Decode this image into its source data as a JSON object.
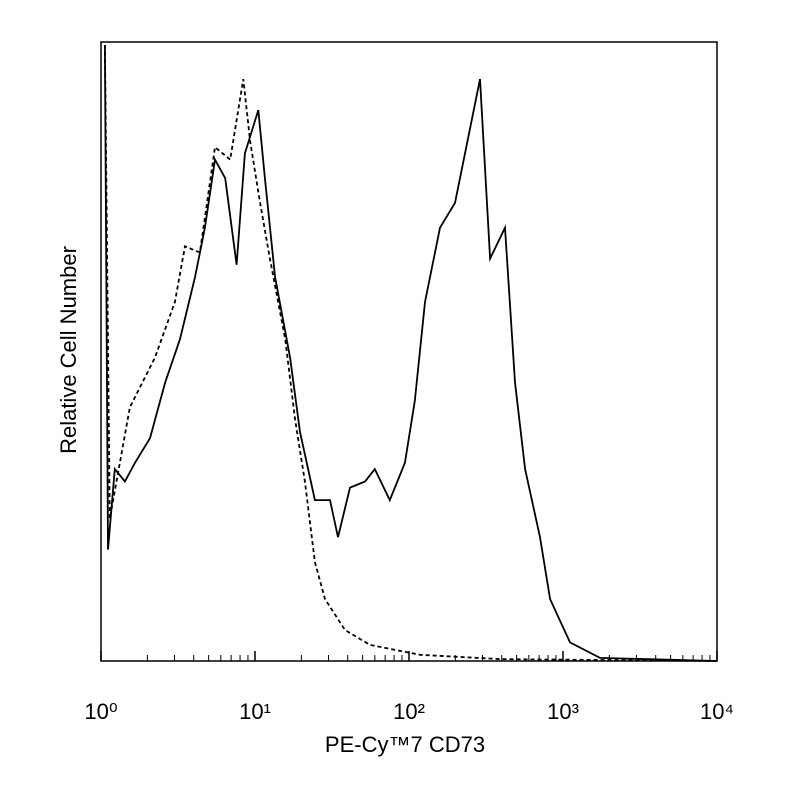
{
  "chart_data": {
    "type": "line",
    "xlabel": "PE-Cy™7 CD73",
    "ylabel": "Relative Cell Number",
    "xscale": "log",
    "xlim": [
      1,
      10000
    ],
    "xticks": [
      {
        "value": 1,
        "label": "10⁰"
      },
      {
        "value": 10,
        "label": "10¹"
      },
      {
        "value": 100,
        "label": "10²"
      },
      {
        "value": 1000,
        "label": "10³"
      },
      {
        "value": 10000,
        "label": "10⁴"
      }
    ],
    "ylim": [
      0,
      100
    ],
    "series": [
      {
        "color": "#000000",
        "style": "solid",
        "x": [
          1.06,
          1.11,
          1.23,
          1.43,
          1.66,
          2.08,
          2.61,
          3.26,
          4.08,
          4.73,
          5.5,
          6.4,
          7.6,
          8.6,
          10.5,
          11.6,
          13.5,
          16.9,
          19.6,
          24.5,
          30.7,
          34.6,
          41.4,
          51.8,
          60,
          75,
          94,
          109,
          127,
          159,
          199,
          249,
          289,
          336,
          420,
          488,
          567,
          709,
          824,
          1110,
          1740,
          10000
        ],
        "values": [
          99.5,
          18,
          31,
          29,
          32,
          36,
          45,
          52,
          62,
          70,
          81,
          78,
          64,
          82,
          89,
          78,
          62,
          49,
          37,
          26,
          26,
          20,
          28,
          29,
          31,
          26,
          32,
          42,
          58,
          70,
          74,
          86,
          94,
          65,
          70,
          45,
          31,
          20,
          10,
          3,
          0.5,
          0
        ]
      },
      {
        "color": "#000000",
        "style": "dashed",
        "x": [
          1.06,
          1.14,
          1.54,
          2.24,
          3.02,
          3.51,
          4.39,
          5.5,
          6.9,
          8.4,
          9.3,
          10.8,
          12.5,
          15.7,
          18.2,
          21.1,
          24.5,
          28.5,
          38.4,
          55.8,
          118,
          390,
          10000
        ],
        "values": [
          99.5,
          23,
          41,
          49,
          58,
          67,
          66,
          83,
          81,
          94,
          84,
          74,
          65,
          52,
          39,
          29,
          16,
          10,
          5,
          2.6,
          1,
          0.3,
          0
        ]
      }
    ]
  }
}
